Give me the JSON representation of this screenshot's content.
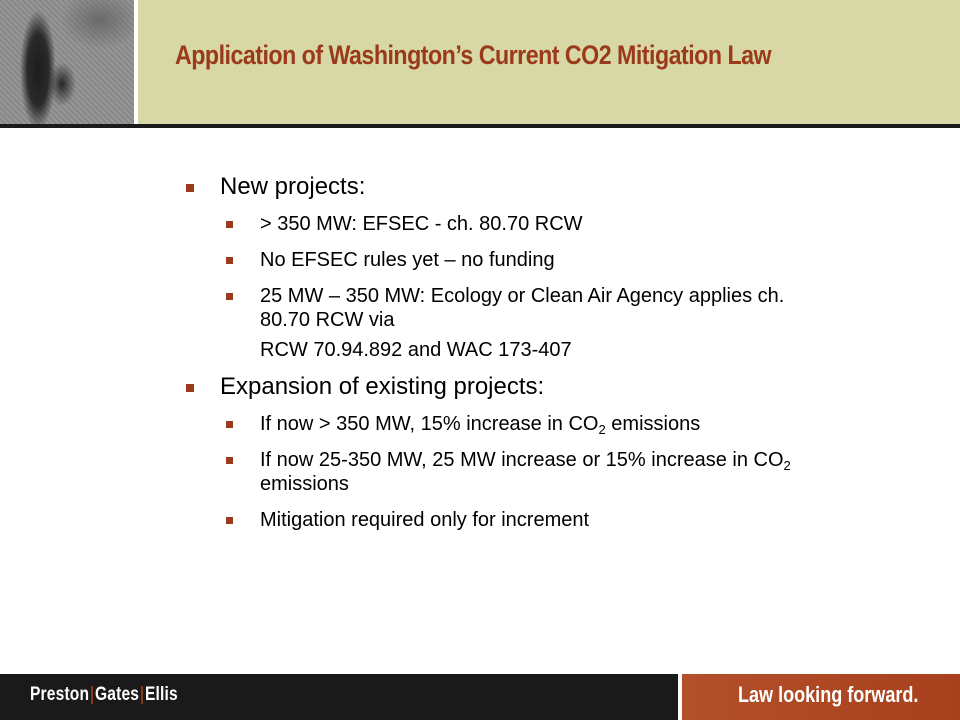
{
  "title": "Application of Washington’s Current CO2 Mitigation Law",
  "sections": [
    {
      "label": "New projects:",
      "items": [
        {
          "text": "> 350 MW: EFSEC - ch. 80.70 RCW"
        },
        {
          "text": "No EFSEC rules yet – no funding"
        },
        {
          "text": "25 MW – 350 MW: Ecology or Clean Air Agency applies ch. 80.70 RCW via",
          "continuation": "RCW 70.94.892 and WAC 173-407"
        }
      ]
    },
    {
      "label": "Expansion of existing projects:",
      "items": [
        {
          "pre": "If now > 350 MW, 15% increase in CO",
          "sub": "2",
          "post": " emissions"
        },
        {
          "pre": "If now 25-350 MW, 25 MW increase or 15% increase in CO",
          "sub": "2",
          "post": " emissions"
        },
        {
          "text": "Mitigation required only for increment"
        }
      ]
    }
  ],
  "footer": {
    "brand_parts": [
      "Preston",
      "Gates",
      "Ellis"
    ],
    "brand_separator": "|",
    "tagline": "Law looking forward."
  },
  "colors": {
    "header_band": "#d8d7a6",
    "title": "#9a3a1a",
    "bullet": "#9a3a1a",
    "footer_dark": "#1a1a1a",
    "footer_accent": "#b2502a"
  }
}
